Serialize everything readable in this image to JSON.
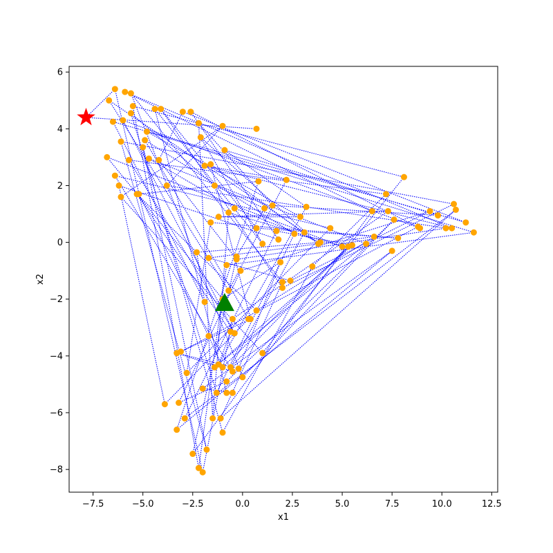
{
  "chart_data": {
    "type": "scatter",
    "title": "",
    "xlabel": "x1",
    "ylabel": "x2",
    "xlim": [
      -8.7,
      12.8
    ],
    "ylim": [
      -8.8,
      6.2
    ],
    "xticks": [
      -7.5,
      -5.0,
      -2.5,
      0.0,
      2.5,
      5.0,
      7.5,
      10.0,
      12.5
    ],
    "xtick_labels": [
      "−7.5",
      "−5.0",
      "−2.5",
      "0.0",
      "2.5",
      "5.0",
      "7.5",
      "10.0",
      "12.5"
    ],
    "yticks": [
      -8,
      -6,
      -4,
      -2,
      0,
      2,
      4,
      6
    ],
    "ytick_labels": [
      "−8",
      "−6",
      "−4",
      "−2",
      "0",
      "2",
      "4",
      "6"
    ],
    "grid": false,
    "colors": {
      "points": "#ffa500",
      "path": "#0000ff",
      "start_marker": "#ff0000",
      "end_marker": "#008000"
    },
    "start_marker": {
      "shape": "star",
      "x": -7.85,
      "y": 4.4
    },
    "end_marker": {
      "shape": "triangle",
      "x": -0.9,
      "y": -2.15
    },
    "points": {
      "x": [
        0.7,
        -7.85,
        -6.4,
        -2.0,
        -0.5,
        7.3,
        -1.2,
        2.9,
        -4.8,
        11.6,
        -0.8,
        -2.2,
        -5.5,
        8.1,
        1.0,
        -6.1,
        -1.0,
        -3.8,
        10.2,
        -0.3,
        -4.2,
        -3.0,
        11.2,
        -6.5,
        -1.9,
        -2.3,
        3.9,
        -0.4,
        -4.7,
        6.2,
        -1.4,
        5.5,
        1.7,
        -2.9,
        10.7,
        -1.1,
        2.0,
        -5.6,
        0.0,
        7.6,
        -0.8,
        -3.2,
        -0.1,
        9.4,
        2.4,
        -1.7,
        6.6,
        0.7,
        -5.3,
        -0.6,
        -1.2,
        3.2,
        -0.9,
        9.8,
        1.5,
        -2.2,
        -1.5,
        -0.7,
        5.0,
        -6.8,
        -1.0,
        1.9,
        -0.2,
        -3.3,
        -0.5,
        -6.4,
        4.4,
        -2.8,
        -1.6,
        7.8,
        0.7,
        -4.1,
        2.0,
        10.6,
        -6.1,
        -1.8,
        -5.0,
        -1.0,
        3.5,
        7.2,
        -5.7,
        -0.4,
        -6.0,
        8.9,
        -2.6,
        1.8,
        -6.2,
        -3.9,
        0.3,
        -4.9,
        2.6,
        -1.3,
        -5.6,
        -1.4,
        1.1,
        -0.3,
        -2.5,
        6.5,
        -5.9,
        10.5,
        -1.9,
        2.2,
        -0.7,
        -6.7,
        3.1,
        -0.6,
        5.3,
        -1.0,
        -1.7,
        -5.2,
        0.8,
        -3.3,
        7.5,
        -2.0,
        -0.5,
        -0.8,
        -4.4,
        1.0,
        -2.1,
        3.8,
        -1.6,
        0.4,
        -3.1,
        8.8
      ],
      "y": [
        4.0,
        4.4,
        5.4,
        -8.1,
        -2.7,
        1.1,
        0.9,
        0.9,
        3.9,
        0.35,
        -0.8,
        -7.95,
        4.8,
        2.3,
        -3.9,
        1.6,
        4.1,
        2.0,
        0.5,
        -0.6,
        2.9,
        4.6,
        0.7,
        4.25,
        -2.1,
        -0.35,
        0.0,
        1.2,
        2.95,
        -0.05,
        -4.4,
        -0.1,
        0.4,
        -6.2,
        1.15,
        -6.2,
        -1.4,
        5.25,
        -4.75,
        0.8,
        -4.9,
        -5.65,
        -1.0,
        1.1,
        -1.35,
        -0.55,
        0.2,
        -2.4,
        1.7,
        -3.15,
        -4.3,
        1.25,
        3.25,
        0.95,
        1.3,
        4.2,
        -6.2,
        1.05,
        -0.15,
        3.0,
        -2.0,
        -0.7,
        -4.45,
        -3.9,
        -4.55,
        2.35,
        0.5,
        -4.6,
        0.7,
        0.15,
        0.5,
        4.7,
        -1.6,
        1.35,
        3.55,
        -7.3,
        3.35,
        -6.7,
        -0.85,
        1.7,
        2.9,
        -3.2,
        4.3,
        0.5,
        4.6,
        0.1,
        2.0,
        -5.7,
        -2.7,
        3.6,
        0.3,
        -5.3,
        4.55,
        2.0,
        1.2,
        -0.5,
        -7.45,
        1.1,
        5.3,
        0.5,
        2.7,
        2.2,
        -1.7,
        5.0,
        0.35,
        -4.4,
        -0.15,
        -4.4,
        -3.3,
        1.7,
        2.15,
        -6.6,
        -0.3,
        -5.15,
        -5.3,
        -5.3,
        4.7,
        -0.05,
        3.7,
        -0.05,
        2.75,
        -2.7,
        -3.85,
        0.55
      ],
      "note": ""
    }
  }
}
